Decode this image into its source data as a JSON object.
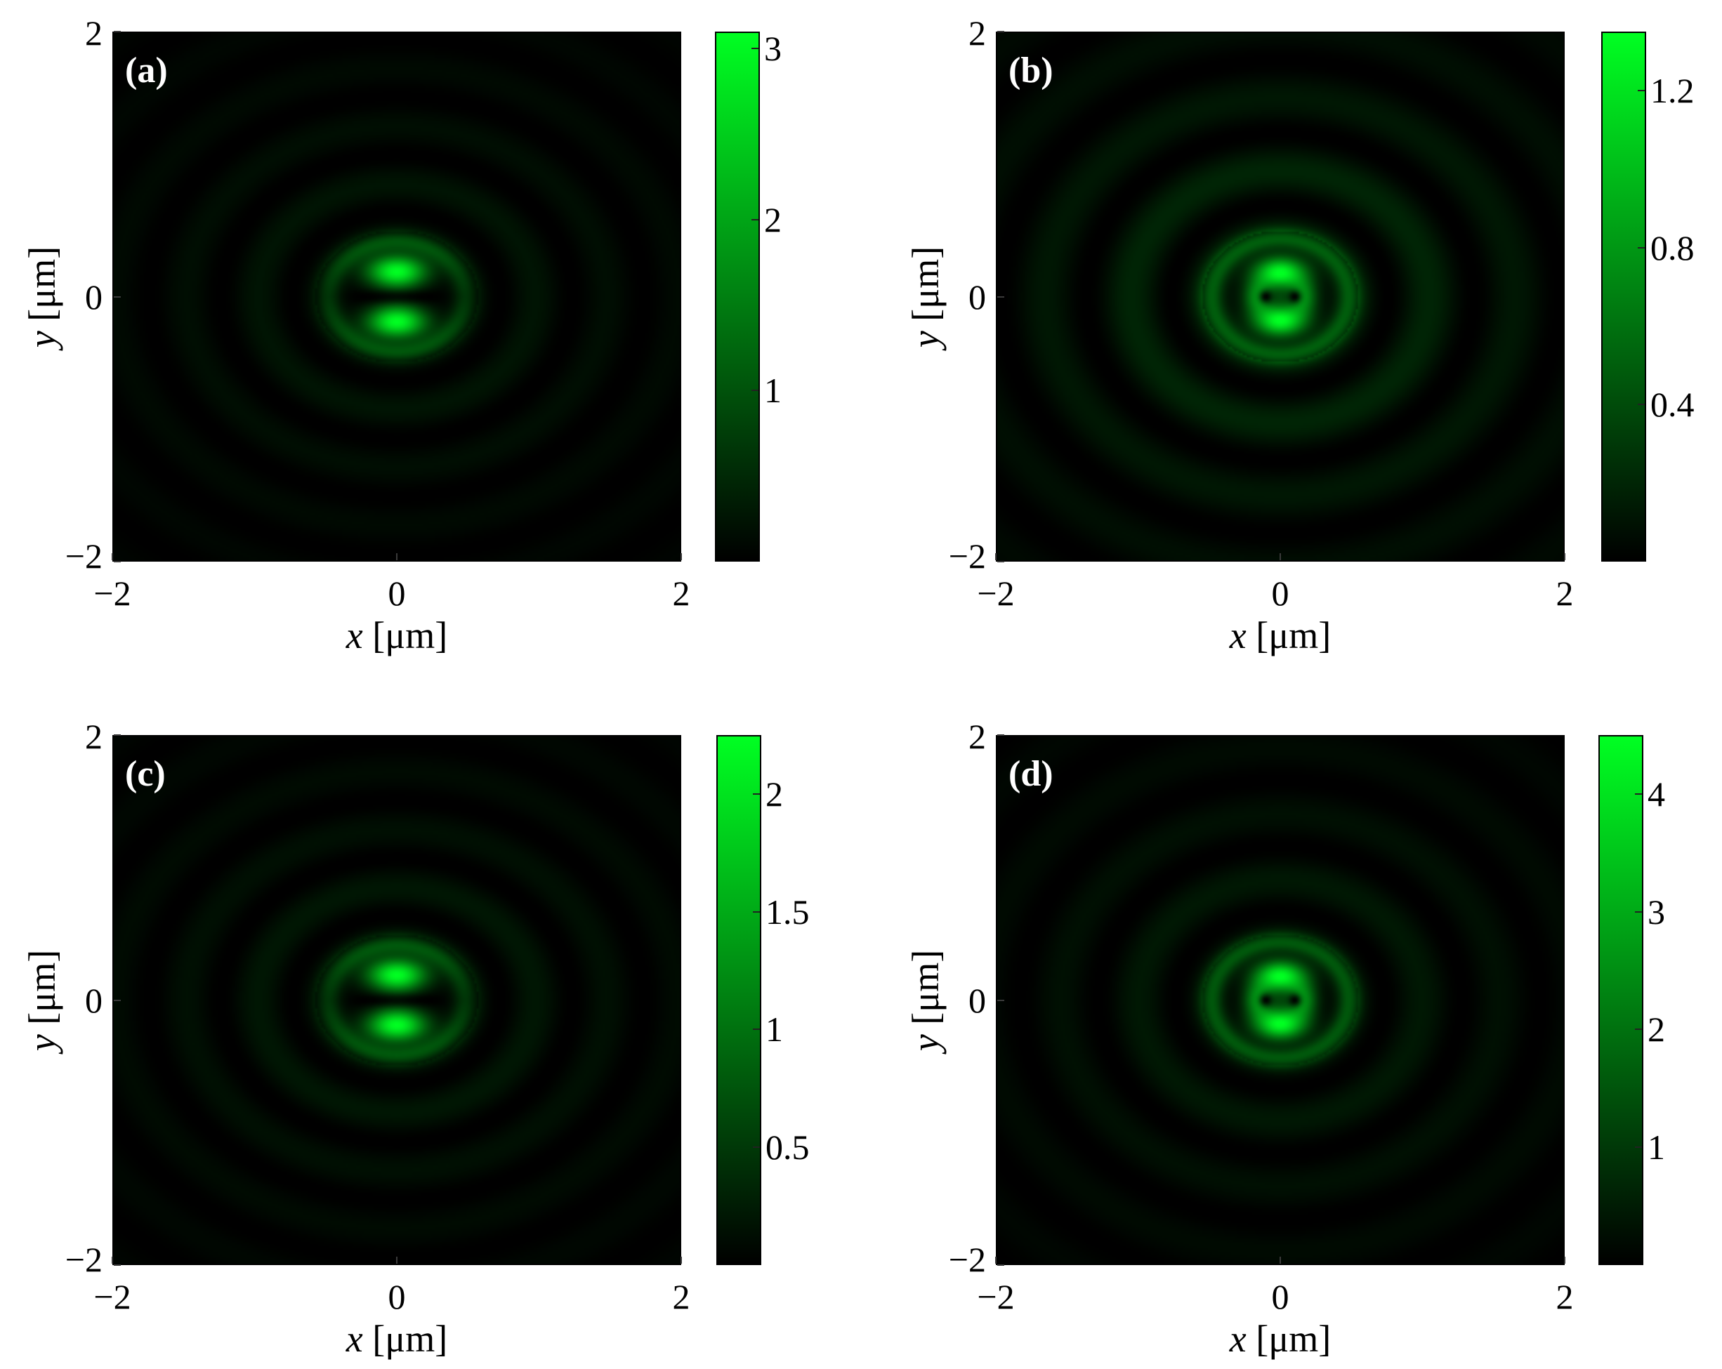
{
  "colors": {
    "map_low": "#000000",
    "map_high": "#00ff22",
    "panel_label": "#ffffff"
  },
  "chart_data": [
    {
      "type": "heatmap",
      "panel_label": "(a)",
      "xlabel_var": "x",
      "xlabel_unit": "[μm]",
      "ylabel_var": "y",
      "ylabel_unit": "[μm]",
      "xlim": [
        -2,
        2
      ],
      "ylim": [
        -2,
        2
      ],
      "x_ticks": [
        "−2",
        "0",
        "2"
      ],
      "y_ticks": [
        "2",
        "0",
        "−2"
      ],
      "colorbar_range": [
        0,
        3.1
      ],
      "colorbar_ticks": [
        {
          "value": 1,
          "label": "1"
        },
        {
          "value": 2,
          "label": "2"
        },
        {
          "value": 3,
          "label": "3"
        }
      ],
      "pattern": "two-lobe",
      "lobe_separation": 0.19,
      "ring_spacing": 0.44,
      "ring_strength": 0.16,
      "ellipticity": 1.15
    },
    {
      "type": "heatmap",
      "panel_label": "(b)",
      "xlabel_var": "x",
      "xlabel_unit": "[μm]",
      "ylabel_var": "y",
      "ylabel_unit": "[μm]",
      "xlim": [
        -2,
        2
      ],
      "ylim": [
        -2,
        2
      ],
      "x_ticks": [
        "−2",
        "0",
        "2"
      ],
      "y_ticks": [
        "2",
        "0",
        "−2"
      ],
      "colorbar_range": [
        0,
        1.35
      ],
      "colorbar_ticks": [
        {
          "value": 0.4,
          "label": "0.4"
        },
        {
          "value": 0.8,
          "label": "0.8"
        },
        {
          "value": 1.2,
          "label": "1.2"
        }
      ],
      "pattern": "four-lobe",
      "lobe_separation": 0.18,
      "ring_spacing": 0.55,
      "ring_strength": 0.32,
      "ellipticity": 1.1
    },
    {
      "type": "heatmap",
      "panel_label": "(c)",
      "xlabel_var": "x",
      "xlabel_unit": "[μm]",
      "ylabel_var": "y",
      "ylabel_unit": "[μm]",
      "xlim": [
        -2,
        2
      ],
      "ylim": [
        -2,
        2
      ],
      "x_ticks": [
        "−2",
        "0",
        "2"
      ],
      "y_ticks": [
        "2",
        "0",
        "−2"
      ],
      "colorbar_range": [
        0,
        2.25
      ],
      "colorbar_ticks": [
        {
          "value": 0.5,
          "label": "0.5"
        },
        {
          "value": 1,
          "label": "1"
        },
        {
          "value": 1.5,
          "label": "1.5"
        },
        {
          "value": 2,
          "label": "2"
        }
      ],
      "pattern": "two-lobe",
      "lobe_separation": 0.19,
      "ring_spacing": 0.44,
      "ring_strength": 0.18,
      "ellipticity": 1.15
    },
    {
      "type": "heatmap",
      "panel_label": "(d)",
      "xlabel_var": "x",
      "xlabel_unit": "[μm]",
      "ylabel_var": "y",
      "ylabel_unit": "[μm]",
      "xlim": [
        -2,
        2
      ],
      "ylim": [
        -2,
        2
      ],
      "x_ticks": [
        "−2",
        "0",
        "2"
      ],
      "y_ticks": [
        "2",
        "0",
        "−2"
      ],
      "colorbar_range": [
        0,
        4.5
      ],
      "colorbar_ticks": [
        {
          "value": 1,
          "label": "1"
        },
        {
          "value": 2,
          "label": "2"
        },
        {
          "value": 3,
          "label": "3"
        },
        {
          "value": 4,
          "label": "4"
        }
      ],
      "pattern": "four-lobe",
      "lobe_separation": 0.18,
      "ring_spacing": 0.5,
      "ring_strength": 0.2,
      "ellipticity": 1.1
    }
  ]
}
